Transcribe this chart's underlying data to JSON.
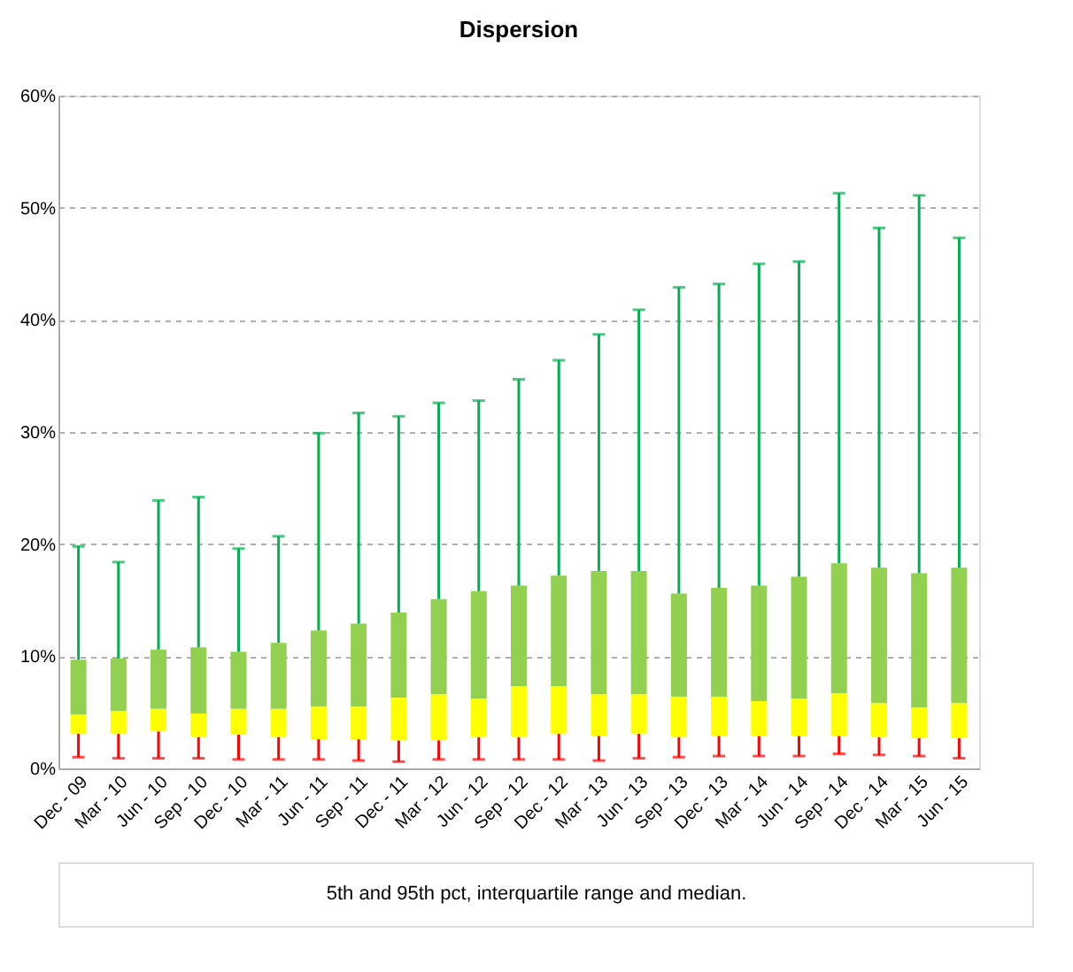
{
  "chart_data": {
    "type": "box",
    "title": "Dispersion",
    "categories": [
      "Dec - 09",
      "Mar - 10",
      "Jun - 10",
      "Sep - 10",
      "Dec - 10",
      "Mar - 11",
      "Jun - 11",
      "Sep - 11",
      "Dec - 11",
      "Mar - 12",
      "Jun - 12",
      "Sep - 12",
      "Dec - 12",
      "Mar - 13",
      "Jun - 13",
      "Sep - 13",
      "Dec - 13",
      "Mar - 14",
      "Jun - 14",
      "Sep - 14",
      "Dec - 14",
      "Mar - 15",
      "Jun - 15"
    ],
    "series": [
      {
        "color": "#ffff00",
        "boxes": [
          {
            "low": 1.0,
            "q1": 3.1,
            "median": 4.8,
            "q3": 9.7,
            "high": 19.8
          },
          {
            "low": 0.9,
            "q1": 3.1,
            "median": 5.1,
            "q3": 9.8,
            "high": 18.4
          },
          {
            "low": 0.9,
            "q1": 3.3,
            "median": 5.3,
            "q3": 10.6,
            "high": 23.9
          },
          {
            "low": 0.9,
            "q1": 2.8,
            "median": 4.9,
            "q3": 10.8,
            "high": 24.2
          },
          {
            "low": 0.8,
            "q1": 3.0,
            "median": 5.3,
            "q3": 10.4,
            "high": 19.6
          },
          {
            "low": 0.8,
            "q1": 2.8,
            "median": 5.3,
            "q3": 11.2,
            "high": 20.7
          },
          {
            "low": 0.8,
            "q1": 2.6,
            "median": 5.5,
            "q3": 12.3,
            "high": 29.9
          },
          {
            "low": 0.7,
            "q1": 2.6,
            "median": 5.5,
            "q3": 12.9,
            "high": 31.7
          },
          {
            "low": 0.6,
            "q1": 2.5,
            "median": 6.3,
            "q3": 13.9,
            "high": 31.4
          },
          {
            "low": 0.8,
            "q1": 2.5,
            "median": 6.6,
            "q3": 15.1,
            "high": 32.6
          },
          {
            "low": 0.8,
            "q1": 2.8,
            "median": 6.2,
            "q3": 15.8,
            "high": 32.8
          },
          {
            "low": 0.8,
            "q1": 2.8,
            "median": 7.3,
            "q3": 16.3,
            "high": 34.7
          },
          {
            "low": 0.8,
            "q1": 3.1,
            "median": 7.3,
            "q3": 17.2,
            "high": 36.4
          },
          {
            "low": 0.7,
            "q1": 2.9,
            "median": 6.6,
            "q3": 17.6,
            "high": 38.7
          },
          {
            "low": 0.9,
            "q1": 3.1,
            "median": 6.6,
            "q3": 17.6,
            "high": 40.9
          },
          {
            "low": 1.0,
            "q1": 2.8,
            "median": 6.4,
            "q3": 15.6,
            "high": 42.9
          },
          {
            "low": 1.1,
            "q1": 2.9,
            "median": 6.4,
            "q3": 16.1,
            "high": 43.2
          },
          {
            "low": 1.1,
            "q1": 2.9,
            "median": 6.0,
            "q3": 16.3,
            "high": 45.0
          },
          {
            "low": 1.1,
            "q1": 2.9,
            "median": 6.2,
            "q3": 17.1,
            "high": 45.2
          },
          {
            "low": 1.3,
            "q1": 2.9,
            "median": 6.7,
            "q3": 18.3,
            "high": 51.3
          },
          {
            "low": 1.2,
            "q1": 2.8,
            "median": 5.8,
            "q3": 17.9,
            "high": 48.2
          },
          {
            "low": 1.1,
            "q1": 2.7,
            "median": 5.4,
            "q3": 17.4,
            "high": 51.1
          },
          {
            "low": 0.9,
            "q1": 2.7,
            "median": 5.8,
            "q3": 17.9,
            "high": 47.3
          }
        ]
      }
    ],
    "ylim": [
      0,
      60
    ],
    "yticks": [
      {
        "value": 0,
        "label": "0%"
      },
      {
        "value": 10,
        "label": "10%"
      },
      {
        "value": 20,
        "label": "20%"
      },
      {
        "value": 30,
        "label": "30%"
      },
      {
        "value": 40,
        "label": "40%"
      },
      {
        "value": 50,
        "label": "50%"
      },
      {
        "value": 60,
        "label": "60%"
      }
    ],
    "grid": "y",
    "annotations": [
      "5th and 95th pct, interquartile range and median."
    ]
  }
}
